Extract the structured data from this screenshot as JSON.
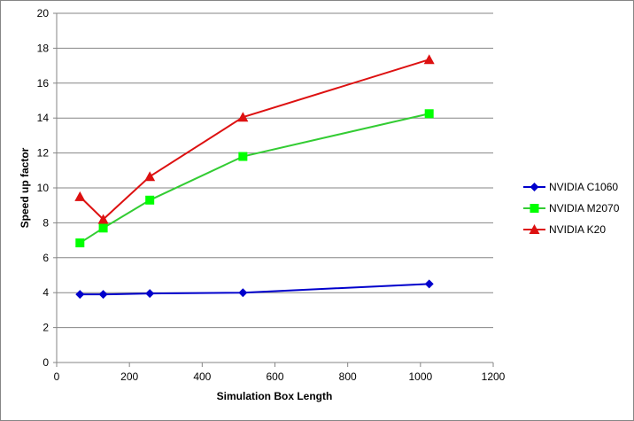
{
  "chart_data": {
    "type": "line",
    "title": "",
    "xlabel": "Simulation Box Length",
    "ylabel": "Speed up factor",
    "xlim": [
      0,
      1200
    ],
    "ylim": [
      0,
      20
    ],
    "xticks": [
      0,
      200,
      400,
      600,
      800,
      1000,
      1200
    ],
    "yticks": [
      0,
      2,
      4,
      6,
      8,
      10,
      12,
      14,
      16,
      18,
      20
    ],
    "grid": "horizontal",
    "legend_position": "right",
    "series": [
      {
        "name": "NVIDIA C1060",
        "color": "#0000CC",
        "marker": "diamond",
        "x": [
          64,
          128,
          256,
          512,
          1024
        ],
        "y": [
          3.9,
          3.9,
          3.95,
          4.0,
          4.5
        ]
      },
      {
        "name": "NVIDIA M2070",
        "color": "#00FF00",
        "line_color": "#33CC33",
        "marker": "square",
        "x": [
          64,
          128,
          256,
          512,
          1024
        ],
        "y": [
          6.85,
          7.7,
          9.3,
          11.8,
          14.25
        ]
      },
      {
        "name": "NVIDIA K20",
        "color": "#DD1111",
        "marker": "triangle",
        "x": [
          64,
          128,
          256,
          512,
          1024
        ],
        "y": [
          9.5,
          8.2,
          10.65,
          14.05,
          17.35
        ]
      }
    ]
  }
}
